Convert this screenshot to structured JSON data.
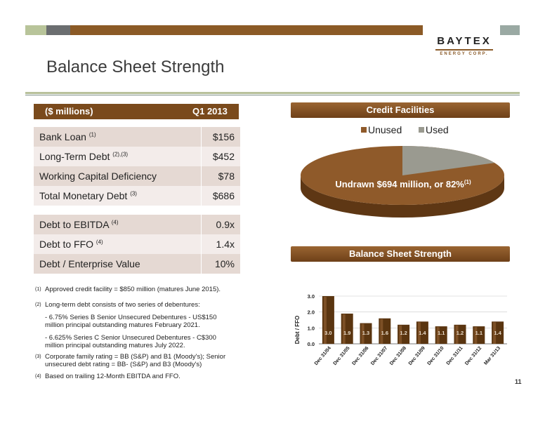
{
  "logo": {
    "name": "BAYTEX",
    "sub": "ENERGY CORP."
  },
  "page_title": "Balance Sheet Strength",
  "table": {
    "header_left": "($ millions)",
    "header_right": "Q1 2013",
    "rows_a": [
      {
        "label": "Bank Loan",
        "sup": "(1)",
        "value": "$156"
      },
      {
        "label": "Long-Term Debt",
        "sup": "(2),(3)",
        "value": "$452"
      },
      {
        "label": "Working Capital Deficiency",
        "sup": "",
        "value": "$78"
      },
      {
        "label": "Total Monetary Debt",
        "sup": "(3)",
        "value": "$686"
      }
    ],
    "rows_b": [
      {
        "label": "Debt to EBITDA",
        "sup": "(4)",
        "value": "0.9x"
      },
      {
        "label": "Debt to FFO",
        "sup": "(4)",
        "value": "1.4x"
      },
      {
        "label": "Debt  / Enterprise Value",
        "sup": "",
        "value": "10%"
      }
    ]
  },
  "footnotes": {
    "n1": {
      "mark": "(1)",
      "text": "Approved credit facility = $850 million (matures June 2015)."
    },
    "n2": {
      "mark": "(2)",
      "text": "Long-term debt consists of two series of debentures:"
    },
    "n2a": {
      "l1": "-  6.75% Series B Senior Unsecured Debentures - US$150",
      "l2": "million principal outstanding matures February 2021."
    },
    "n2b": {
      "l1": "-  6.625% Series C Senior Unsecured Debentures - C$300",
      "l2": "million principal outstanding matures July 2022."
    },
    "n3": {
      "mark": "(3)",
      "l1": "Corporate family rating = BB (S&P) and B1 (Moody's); Senior",
      "l2": "unsecured debt rating = BB- (S&P) and B3 (Moody's)"
    },
    "n4": {
      "mark": "(4)",
      "text": "Based on trailing 12-Month EBITDA and FFO."
    }
  },
  "credit": {
    "header": "Credit Facilities",
    "legend_unused": "Unused",
    "legend_used": "Used",
    "label": "Undrawn $694 million, or 82%",
    "label_sup": "(1)",
    "colors": {
      "unused": "#8f5a2a",
      "used": "#9a9a90"
    }
  },
  "bss_header": "Balance Sheet Strength",
  "page_number": "11",
  "chart_data": [
    {
      "type": "pie",
      "labels": [
        "Unused",
        "Used"
      ],
      "values": [
        82,
        18
      ]
    },
    {
      "type": "bar",
      "categories": [
        "Dec 31/04",
        "Dec 31/05",
        "Dec 31/06",
        "Dec 31/07",
        "Dec 31/08",
        "Dec 31/09",
        "Dec 31/10",
        "Dec 31/11",
        "Dec 31/12",
        "Mar 31/13"
      ],
      "values": [
        3.0,
        1.9,
        1.3,
        1.6,
        1.2,
        1.4,
        1.1,
        1.2,
        1.1,
        1.4
      ],
      "value_labels": [
        "3.0",
        "1.9",
        "1.3",
        "1.6",
        "1.2",
        "1.4",
        "1.1",
        "1.2",
        "1.1",
        "1.4"
      ],
      "ylabel": "Debt / FFO",
      "ylim": [
        0,
        3.0
      ],
      "yticks": [
        "0.0",
        "1.0",
        "2.0",
        "3.0"
      ],
      "grid": true
    }
  ]
}
